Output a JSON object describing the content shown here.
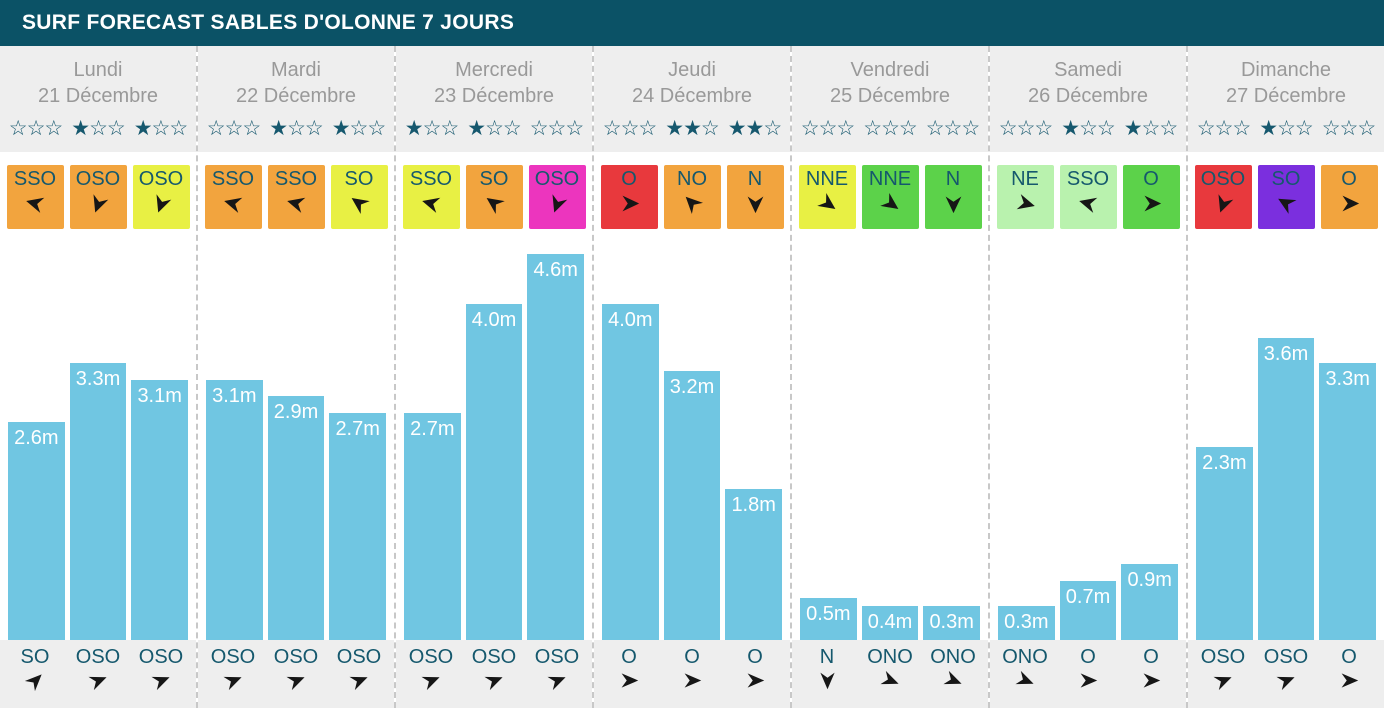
{
  "title": "SURF FORECAST SABLES D'OLONNE 7 JOURS",
  "colors": {
    "header_bg": "#0B5266",
    "section_bg": "#EEEEEE",
    "bar": "#70C6E2",
    "star": "#16586E",
    "direction_text": "#15586D",
    "day_text": "#999999",
    "arrow": "#161616",
    "wind_orange": "#F2A43E",
    "wind_yellow": "#E8F044",
    "wind_magenta": "#EC35BE",
    "wind_red": "#E8393D",
    "wind_green": "#5CD24A",
    "wind_lightgreen": "#B9F2AE",
    "wind_purple": "#7B2FDE"
  },
  "days": [
    {
      "name": "Lundi",
      "date": "21 Décembre",
      "stars": [
        0,
        1,
        1
      ],
      "wind": [
        {
          "dir": "SSO",
          "color": "#F2A43E",
          "rot": 195
        },
        {
          "dir": "OSO",
          "color": "#F2A43E",
          "rot": 110
        },
        {
          "dir": "OSO",
          "color": "#E8F044",
          "rot": 110
        }
      ],
      "waves": [
        {
          "label": "2.6m",
          "value": 2.6
        },
        {
          "label": "3.3m",
          "value": 3.3
        },
        {
          "label": "3.1m",
          "value": 3.1
        }
      ],
      "swell": [
        {
          "dir": "SO",
          "rot": -45
        },
        {
          "dir": "OSO",
          "rot": -22
        },
        {
          "dir": "OSO",
          "rot": -22
        }
      ]
    },
    {
      "name": "Mardi",
      "date": "22 Décembre",
      "stars": [
        0,
        1,
        1
      ],
      "wind": [
        {
          "dir": "SSO",
          "color": "#F2A43E",
          "rot": 195
        },
        {
          "dir": "SSO",
          "color": "#F2A43E",
          "rot": 195
        },
        {
          "dir": "SO",
          "color": "#E8F044",
          "rot": 215
        }
      ],
      "waves": [
        {
          "label": "3.1m",
          "value": 3.1
        },
        {
          "label": "2.9m",
          "value": 2.9
        },
        {
          "label": "2.7m",
          "value": 2.7
        }
      ],
      "swell": [
        {
          "dir": "OSO",
          "rot": -22
        },
        {
          "dir": "OSO",
          "rot": -22
        },
        {
          "dir": "OSO",
          "rot": -22
        }
      ]
    },
    {
      "name": "Mercredi",
      "date": "23 Décembre",
      "stars": [
        1,
        1,
        0
      ],
      "wind": [
        {
          "dir": "SSO",
          "color": "#E8F044",
          "rot": 195
        },
        {
          "dir": "SO",
          "color": "#F2A43E",
          "rot": 215
        },
        {
          "dir": "OSO",
          "color": "#EC35BE",
          "rot": 110
        }
      ],
      "waves": [
        {
          "label": "2.7m",
          "value": 2.7
        },
        {
          "label": "4.0m",
          "value": 4.0
        },
        {
          "label": "4.6m",
          "value": 4.6
        }
      ],
      "swell": [
        {
          "dir": "OSO",
          "rot": -22
        },
        {
          "dir": "OSO",
          "rot": -22
        },
        {
          "dir": "OSO",
          "rot": -22
        }
      ]
    },
    {
      "name": "Jeudi",
      "date": "24 Décembre",
      "stars": [
        0,
        2,
        2
      ],
      "wind": [
        {
          "dir": "O",
          "color": "#E8393D",
          "rot": 0
        },
        {
          "dir": "NO",
          "color": "#F2A43E",
          "rot": 225
        },
        {
          "dir": "N",
          "color": "#F2A43E",
          "rot": 90
        }
      ],
      "waves": [
        {
          "label": "4.0m",
          "value": 4.0
        },
        {
          "label": "3.2m",
          "value": 3.2
        },
        {
          "label": "1.8m",
          "value": 1.8
        }
      ],
      "swell": [
        {
          "dir": "O",
          "rot": 0
        },
        {
          "dir": "O",
          "rot": 0
        },
        {
          "dir": "O",
          "rot": 0
        }
      ]
    },
    {
      "name": "Vendredi",
      "date": "25 Décembre",
      "stars": [
        0,
        0,
        0
      ],
      "wind": [
        {
          "dir": "NNE",
          "color": "#E8F044",
          "rot": 35
        },
        {
          "dir": "NNE",
          "color": "#5CD24A",
          "rot": 35
        },
        {
          "dir": "N",
          "color": "#5CD24A",
          "rot": 90
        }
      ],
      "waves": [
        {
          "label": "0.5m",
          "value": 0.5
        },
        {
          "label": "0.4m",
          "value": 0.4
        },
        {
          "label": "0.3m",
          "value": 0.3
        }
      ],
      "swell": [
        {
          "dir": "N",
          "rot": 90
        },
        {
          "dir": "ONO",
          "rot": 22
        },
        {
          "dir": "ONO",
          "rot": 22
        }
      ]
    },
    {
      "name": "Samedi",
      "date": "26 Décembre",
      "stars": [
        0,
        1,
        1
      ],
      "wind": [
        {
          "dir": "NE",
          "color": "#B9F2AE",
          "rot": 15
        },
        {
          "dir": "SSO",
          "color": "#B9F2AE",
          "rot": 195
        },
        {
          "dir": "O",
          "color": "#5CD24A",
          "rot": 0
        }
      ],
      "waves": [
        {
          "label": "0.3m",
          "value": 0.3
        },
        {
          "label": "0.7m",
          "value": 0.7
        },
        {
          "label": "0.9m",
          "value": 0.9
        }
      ],
      "swell": [
        {
          "dir": "ONO",
          "rot": 22
        },
        {
          "dir": "O",
          "rot": 0
        },
        {
          "dir": "O",
          "rot": 0
        }
      ]
    },
    {
      "name": "Dimanche",
      "date": "27 Décembre",
      "stars": [
        0,
        1,
        0
      ],
      "wind": [
        {
          "dir": "OSO",
          "color": "#E8393D",
          "rot": 110
        },
        {
          "dir": "SO",
          "color": "#7B2FDE",
          "rot": 210
        },
        {
          "dir": "O",
          "color": "#F2A43E",
          "rot": 0
        }
      ],
      "waves": [
        {
          "label": "2.3m",
          "value": 2.3
        },
        {
          "label": "3.6m",
          "value": 3.6
        },
        {
          "label": "3.3m",
          "value": 3.3
        }
      ],
      "swell": [
        {
          "dir": "OSO",
          "rot": -22
        },
        {
          "dir": "OSO",
          "rot": -22
        },
        {
          "dir": "O",
          "rot": 0
        }
      ]
    }
  ],
  "chart_data": {
    "type": "bar",
    "title": "SURF FORECAST SABLES D'OLONNE 7 JOURS",
    "unit": "m",
    "categories": [
      "Lundi 21 Décembre",
      "Mardi 22 Décembre",
      "Mercredi 23 Décembre",
      "Jeudi 24 Décembre",
      "Vendredi 25 Décembre",
      "Samedi 26 Décembre",
      "Dimanche 27 Décembre"
    ],
    "readings_per_day": 3,
    "values_by_day": [
      [
        2.6,
        3.3,
        3.1
      ],
      [
        3.1,
        2.9,
        2.7
      ],
      [
        2.7,
        4.0,
        4.6
      ],
      [
        4.0,
        3.2,
        1.8
      ],
      [
        0.5,
        0.4,
        0.3
      ],
      [
        0.3,
        0.7,
        0.9
      ],
      [
        2.3,
        3.6,
        3.3
      ]
    ],
    "star_ratings_by_day": [
      [
        0,
        1,
        1
      ],
      [
        0,
        1,
        1
      ],
      [
        1,
        1,
        0
      ],
      [
        0,
        2,
        2
      ],
      [
        0,
        0,
        0
      ],
      [
        0,
        1,
        1
      ],
      [
        0,
        1,
        0
      ]
    ],
    "wind_directions_by_day": [
      [
        "SSO",
        "OSO",
        "OSO"
      ],
      [
        "SSO",
        "SSO",
        "SO"
      ],
      [
        "SSO",
        "SO",
        "OSO"
      ],
      [
        "O",
        "NO",
        "N"
      ],
      [
        "NNE",
        "NNE",
        "N"
      ],
      [
        "NE",
        "SSO",
        "O"
      ],
      [
        "OSO",
        "SO",
        "O"
      ]
    ],
    "swell_directions_by_day": [
      [
        "SO",
        "OSO",
        "OSO"
      ],
      [
        "OSO",
        "OSO",
        "OSO"
      ],
      [
        "OSO",
        "OSO",
        "OSO"
      ],
      [
        "O",
        "O",
        "O"
      ],
      [
        "N",
        "ONO",
        "ONO"
      ],
      [
        "ONO",
        "O",
        "O"
      ],
      [
        "OSO",
        "OSO",
        "O"
      ]
    ],
    "ylim": [
      0,
      5
    ],
    "bar_color": "#70C6E2",
    "legend": "none",
    "grid": false
  }
}
